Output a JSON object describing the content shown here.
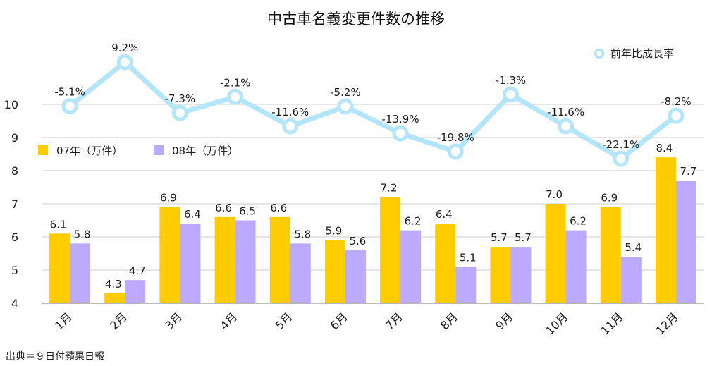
{
  "chart_data": {
    "type": "bar",
    "title": "中古車名義変更件数の推移",
    "categories": [
      "1月",
      "2月",
      "3月",
      "4月",
      "5月",
      "6月",
      "7月",
      "8月",
      "9月",
      "10月",
      "11月",
      "12月"
    ],
    "ylim": [
      4,
      10
    ],
    "yticks": [
      "4",
      "5",
      "6",
      "7",
      "8",
      "9",
      "10"
    ],
    "grid": true,
    "series": [
      {
        "name": "07年（万件）",
        "color": "#FFCC00",
        "values": [
          6.1,
          4.3,
          6.9,
          6.6,
          6.6,
          5.9,
          7.2,
          6.4,
          5.7,
          7.0,
          6.9,
          8.4
        ],
        "labels": [
          "6.1",
          "4.3",
          "6.9",
          "6.6",
          "6.6",
          "5.9",
          "7.2",
          "6.4",
          "5.7",
          "7.0",
          "6.9",
          "8.4"
        ]
      },
      {
        "name": "08年（万件）",
        "color": "#BBAAFF",
        "values": [
          5.8,
          4.7,
          6.4,
          6.5,
          5.8,
          5.6,
          6.2,
          5.1,
          5.7,
          6.2,
          5.4,
          7.7
        ],
        "labels": [
          "5.8",
          "4.7",
          "6.4",
          "6.5",
          "5.8",
          "5.6",
          "6.2",
          "5.1",
          "5.7",
          "6.2",
          "5.4",
          "7.7"
        ]
      }
    ],
    "line_series": {
      "name": "前年比成長率",
      "color": "#B3E5FC",
      "values": [
        -5.1,
        9.2,
        -7.3,
        -2.1,
        -11.6,
        -5.2,
        -13.9,
        -19.8,
        -1.3,
        -11.6,
        -22.1,
        -8.2
      ],
      "labels": [
        "-5.1%",
        "9.2%",
        "-7.3%",
        "-2.1%",
        "-11.6%",
        "-5.2%",
        "-13.9%",
        "-19.8%",
        "-1.3%",
        "-11.6%",
        "-22.1%",
        "-8.2%"
      ],
      "legend_position": "top-right"
    },
    "bar_legend_position": "top-left",
    "source": "出典＝９日付蘋果日報"
  }
}
